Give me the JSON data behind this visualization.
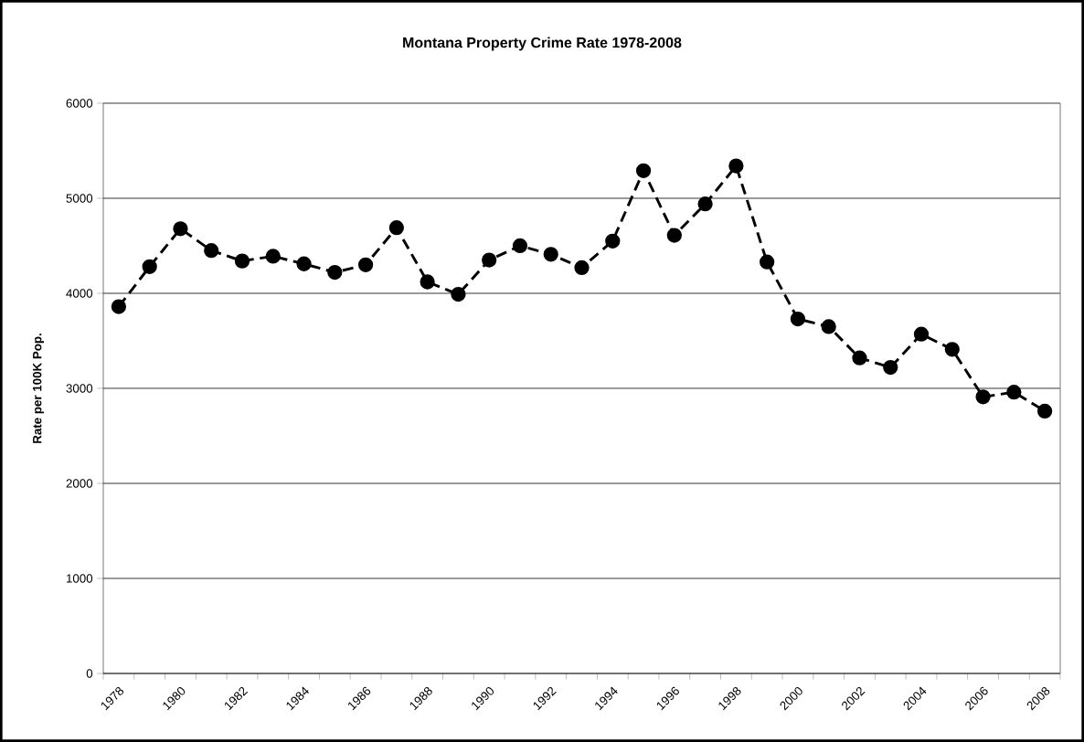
{
  "chart_data": {
    "type": "line",
    "title": "Montana Property Crime Rate 1978-2008",
    "ylabel": "Rate per 100K Pop.",
    "categories": [
      "1978",
      null,
      "1980",
      null,
      "1982",
      null,
      "1984",
      null,
      "1986",
      null,
      "1988",
      null,
      "1990",
      null,
      "1992",
      null,
      "1994",
      null,
      "1996",
      null,
      "1998",
      null,
      "2000",
      null,
      "2002",
      null,
      "2004",
      null,
      "2006",
      null,
      "2008"
    ],
    "series": [
      {
        "color": "#000000",
        "values": [
          3860,
          4280,
          4680,
          4450,
          4340,
          4390,
          4310,
          4220,
          4300,
          4690,
          4120,
          3990,
          4350,
          4500,
          4410,
          4270,
          4550,
          5290,
          4610,
          4940,
          5340,
          4330,
          3730,
          3650,
          3320,
          3220,
          3570,
          3410,
          2910,
          2960,
          2760
        ]
      }
    ],
    "ylim": [
      0,
      6000
    ],
    "yticks": [
      0,
      1000,
      2000,
      3000,
      4000,
      5000,
      6000
    ],
    "grid": "y",
    "marker": "circle",
    "line_style": "dashed"
  }
}
